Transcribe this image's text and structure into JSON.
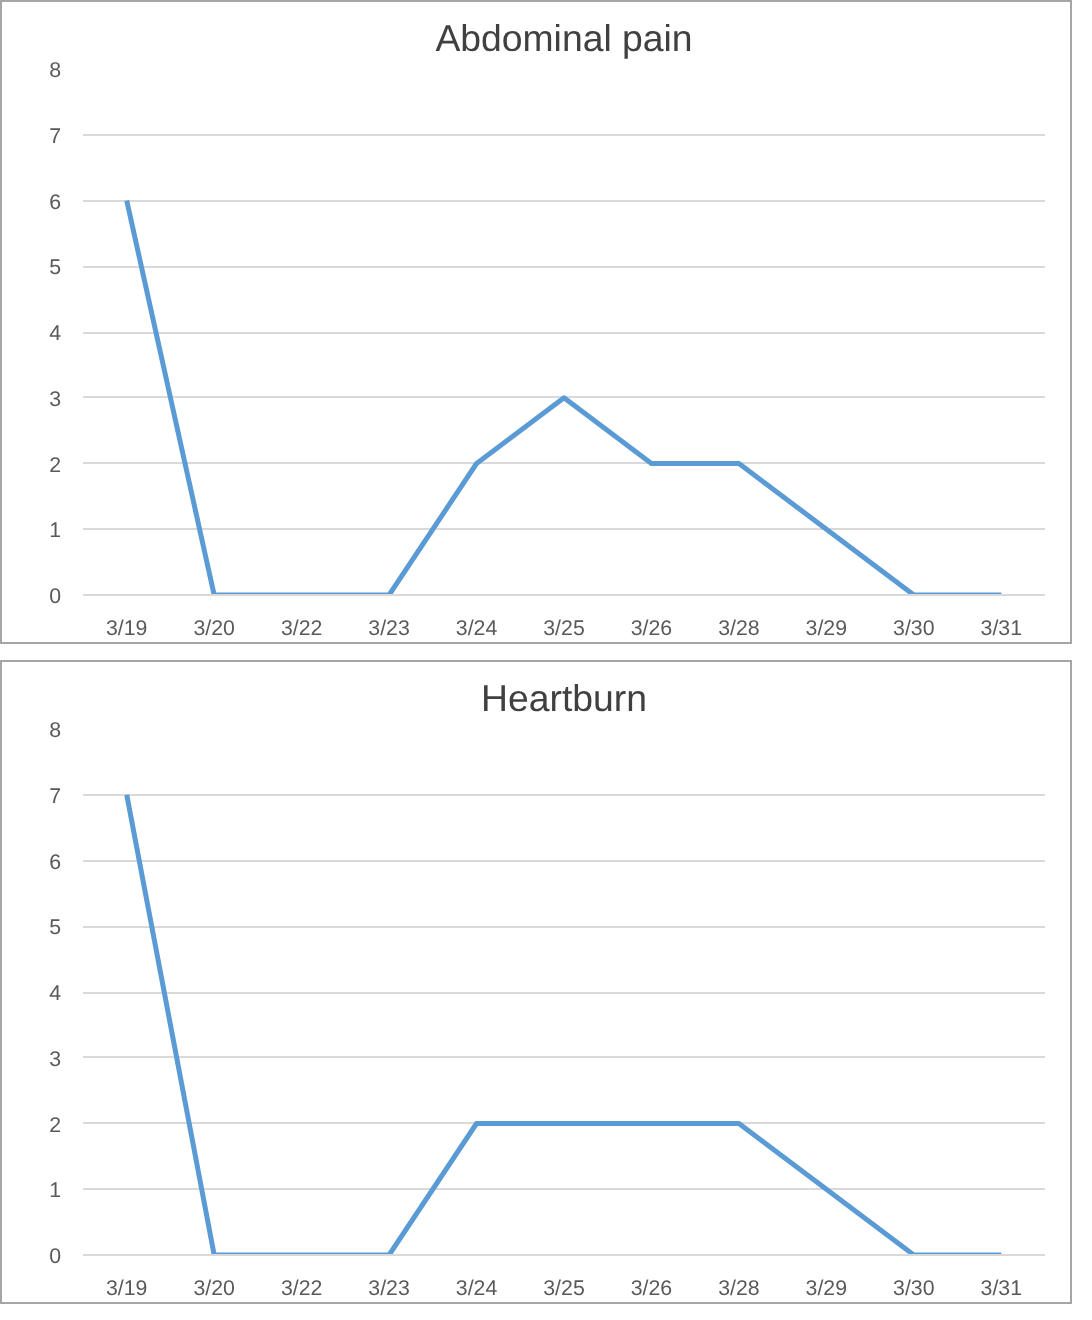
{
  "chart_data": [
    {
      "type": "line",
      "title": "Abdominal pain",
      "categories": [
        "3/19",
        "3/20",
        "3/22",
        "3/23",
        "3/24",
        "3/25",
        "3/26",
        "3/28",
        "3/29",
        "3/30",
        "3/31"
      ],
      "series": [
        {
          "color": "#5b9bd5",
          "values": [
            6,
            0,
            0,
            0,
            2,
            3,
            2,
            2,
            1,
            0,
            0
          ]
        }
      ],
      "ylim": [
        0,
        8
      ],
      "yticks": [
        0,
        1,
        2,
        3,
        4,
        5,
        6,
        7,
        8
      ],
      "grid": "y",
      "marker": "none",
      "line_style": "solid"
    },
    {
      "type": "line",
      "title": "Heartburn",
      "categories": [
        "3/19",
        "3/20",
        "3/22",
        "3/23",
        "3/24",
        "3/25",
        "3/26",
        "3/28",
        "3/29",
        "3/30",
        "3/31"
      ],
      "series": [
        {
          "color": "#5b9bd5",
          "values": [
            7,
            0,
            0,
            0,
            2,
            2,
            2,
            2,
            1,
            0,
            0
          ]
        }
      ],
      "ylim": [
        0,
        8
      ],
      "yticks": [
        0,
        1,
        2,
        3,
        4,
        5,
        6,
        7,
        8
      ],
      "grid": "y",
      "marker": "none",
      "line_style": "solid"
    }
  ]
}
